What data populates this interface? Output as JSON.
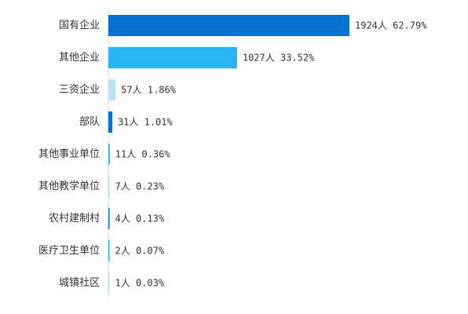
{
  "chart_data": {
    "type": "bar",
    "orientation": "horizontal",
    "title": "",
    "xlabel": "",
    "ylabel": "",
    "grid": false,
    "legend": "none",
    "categories": [
      "国有企业",
      "其他企业",
      "三资企业",
      "部队",
      "其他事业单位",
      "其他教学单位",
      "农村建制村",
      "医疗卫生单位",
      "城镇社区"
    ],
    "values": [
      1924,
      1027,
      57,
      31,
      11,
      7,
      4,
      2,
      1
    ],
    "percents": [
      62.79,
      33.52,
      1.86,
      1.01,
      0.36,
      0.23,
      0.13,
      0.07,
      0.03
    ],
    "data_labels": [
      "1924人 62.79%",
      "1027人 33.52%",
      "57人 1.86%",
      "31人 1.01%",
      "11人 0.36%",
      "7人 0.23%",
      "4人 0.13%",
      "2人 0.07%",
      "1人 0.03%"
    ],
    "bar_colors": [
      "#0072d2",
      "#29b5f2",
      "#b8e1fa",
      "#0072d2",
      "#29b5f2",
      "#b8e1fa",
      "#0072d2",
      "#29b5f2",
      "#b8e1fa"
    ],
    "xlim": [
      0,
      1924
    ]
  }
}
